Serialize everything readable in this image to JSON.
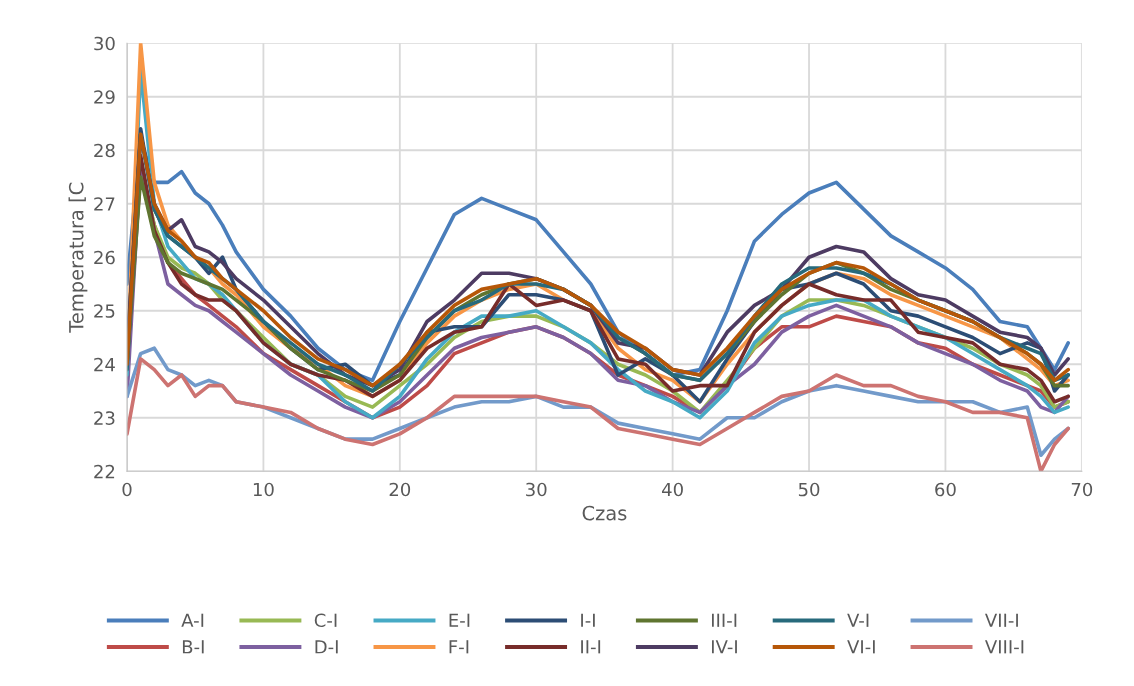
{
  "chart_data": {
    "type": "line",
    "xlabel": "Czas",
    "ylabel": "Temperatura [C",
    "xlim": [
      0,
      70
    ],
    "xticks": [
      0,
      10,
      20,
      30,
      40,
      50,
      60,
      70
    ],
    "ylim": [
      22,
      30
    ],
    "yticks": [
      22,
      23,
      24,
      25,
      26,
      27,
      28,
      29,
      30
    ],
    "grid": true,
    "legend": "bottom",
    "marker": "none",
    "line_style": "solid",
    "x": [
      0,
      1,
      2,
      3,
      4,
      5,
      6,
      7,
      8,
      10,
      12,
      14,
      16,
      18,
      20,
      22,
      24,
      26,
      28,
      30,
      32,
      34,
      36,
      38,
      40,
      42,
      44,
      46,
      48,
      50,
      52,
      54,
      56,
      58,
      60,
      62,
      64,
      66,
      67,
      68,
      69
    ],
    "series": [
      {
        "name": "A-I",
        "color": "#4a7ebb",
        "values": [
          25.5,
          28.2,
          27.4,
          27.4,
          27.6,
          27.2,
          27.0,
          26.6,
          26.1,
          25.4,
          24.9,
          24.3,
          23.9,
          23.7,
          24.8,
          25.8,
          26.8,
          27.1,
          26.9,
          26.7,
          26.1,
          25.5,
          24.6,
          24.2,
          23.8,
          23.9,
          25.0,
          26.3,
          26.8,
          27.2,
          27.4,
          26.9,
          26.4,
          26.1,
          25.8,
          25.4,
          24.8,
          24.7,
          24.3,
          23.9,
          24.4
        ]
      },
      {
        "name": "B-I",
        "color": "#be4b48",
        "values": [
          24.0,
          27.6,
          26.6,
          25.9,
          25.6,
          25.3,
          25.1,
          24.9,
          24.7,
          24.2,
          23.9,
          23.6,
          23.3,
          23.0,
          23.2,
          23.6,
          24.2,
          24.4,
          24.6,
          24.7,
          24.5,
          24.2,
          23.8,
          23.6,
          23.4,
          23.1,
          23.6,
          24.3,
          24.7,
          24.7,
          24.9,
          24.8,
          24.7,
          24.4,
          24.3,
          24.0,
          23.8,
          23.6,
          23.5,
          23.2,
          23.3
        ]
      },
      {
        "name": "C-I",
        "color": "#98b954",
        "values": [
          24.0,
          27.7,
          26.6,
          26.0,
          25.8,
          25.7,
          25.5,
          25.2,
          25.0,
          24.5,
          24.0,
          23.8,
          23.4,
          23.2,
          23.6,
          24.0,
          24.5,
          24.8,
          24.9,
          24.9,
          24.7,
          24.4,
          24.0,
          23.8,
          23.5,
          23.1,
          23.7,
          24.3,
          24.9,
          25.2,
          25.2,
          25.1,
          24.9,
          24.7,
          24.5,
          24.3,
          24.0,
          23.8,
          23.6,
          23.2,
          23.3
        ]
      },
      {
        "name": "D-I",
        "color": "#7d60a0",
        "values": [
          23.4,
          27.8,
          26.5,
          25.5,
          25.3,
          25.1,
          25.0,
          24.8,
          24.6,
          24.2,
          23.8,
          23.5,
          23.2,
          23.0,
          23.3,
          23.8,
          24.3,
          24.5,
          24.6,
          24.7,
          24.5,
          24.2,
          23.7,
          23.6,
          23.3,
          23.1,
          23.6,
          24.0,
          24.6,
          24.9,
          25.1,
          24.9,
          24.7,
          24.4,
          24.2,
          24.0,
          23.7,
          23.5,
          23.2,
          23.1,
          23.4
        ]
      },
      {
        "name": "E-I",
        "color": "#46aac5",
        "values": [
          23.8,
          29.5,
          27.0,
          26.2,
          25.9,
          25.6,
          25.5,
          25.3,
          25.0,
          24.4,
          24.0,
          23.8,
          23.3,
          23.0,
          23.4,
          24.1,
          24.6,
          24.9,
          24.9,
          25.0,
          24.7,
          24.4,
          23.9,
          23.5,
          23.3,
          23.0,
          23.5,
          24.4,
          24.9,
          25.1,
          25.2,
          25.2,
          24.9,
          24.7,
          24.5,
          24.2,
          23.9,
          23.6,
          23.4,
          23.1,
          23.2
        ]
      },
      {
        "name": "F-I",
        "color": "#f79646",
        "values": [
          24.0,
          30.0,
          27.4,
          26.6,
          26.3,
          26.0,
          25.8,
          25.5,
          25.3,
          24.7,
          24.3,
          24.0,
          23.6,
          23.4,
          23.7,
          24.4,
          24.9,
          25.2,
          25.4,
          25.5,
          25.2,
          25.0,
          24.3,
          23.9,
          23.7,
          23.3,
          24.0,
          24.6,
          25.1,
          25.5,
          25.7,
          25.6,
          25.3,
          25.1,
          24.9,
          24.7,
          24.5,
          24.1,
          23.9,
          23.6,
          23.7
        ]
      },
      {
        "name": "I-I",
        "color": "#2c4d75",
        "values": [
          24.2,
          28.4,
          26.9,
          26.4,
          26.2,
          26.0,
          25.7,
          26.0,
          25.4,
          24.8,
          24.3,
          23.9,
          24.0,
          23.6,
          23.8,
          24.6,
          24.7,
          24.7,
          25.3,
          25.3,
          25.2,
          25.0,
          23.8,
          24.1,
          23.8,
          23.3,
          24.1,
          24.8,
          25.4,
          25.5,
          25.7,
          25.5,
          25.0,
          24.9,
          24.7,
          24.5,
          24.2,
          24.4,
          24.3,
          23.5,
          23.8
        ]
      },
      {
        "name": "II-I",
        "color": "#772c2a",
        "values": [
          24.0,
          27.9,
          26.5,
          25.9,
          25.5,
          25.3,
          25.2,
          25.2,
          25.0,
          24.4,
          24.0,
          23.8,
          23.7,
          23.4,
          23.7,
          24.3,
          24.6,
          24.7,
          25.5,
          25.1,
          25.2,
          25.0,
          24.1,
          24.0,
          23.5,
          23.6,
          23.6,
          24.6,
          25.1,
          25.5,
          25.3,
          25.2,
          25.2,
          24.6,
          24.5,
          24.4,
          24.0,
          23.9,
          23.7,
          23.3,
          23.4
        ]
      },
      {
        "name": "III-I",
        "color": "#5f7530",
        "values": [
          24.0,
          27.5,
          26.4,
          25.9,
          25.7,
          25.6,
          25.5,
          25.4,
          25.2,
          24.8,
          24.3,
          23.9,
          23.7,
          23.5,
          23.8,
          24.5,
          25.0,
          25.3,
          25.5,
          25.6,
          25.4,
          25.1,
          24.5,
          24.2,
          23.8,
          23.7,
          24.2,
          24.8,
          25.3,
          25.7,
          25.9,
          25.7,
          25.4,
          25.2,
          25.0,
          24.8,
          24.5,
          24.2,
          24.0,
          23.6,
          23.6
        ]
      },
      {
        "name": "IV-I",
        "color": "#4d3b62",
        "values": [
          24.2,
          28.3,
          27.0,
          26.5,
          26.7,
          26.2,
          26.1,
          25.9,
          25.6,
          25.2,
          24.7,
          24.2,
          23.8,
          23.6,
          23.9,
          24.8,
          25.2,
          25.7,
          25.7,
          25.6,
          25.4,
          25.1,
          24.4,
          24.3,
          23.9,
          23.8,
          24.6,
          25.1,
          25.4,
          26.0,
          26.2,
          26.1,
          25.6,
          25.3,
          25.2,
          24.9,
          24.6,
          24.5,
          24.3,
          23.8,
          24.1
        ]
      },
      {
        "name": "V-I",
        "color": "#276a7c",
        "values": [
          23.9,
          28.3,
          26.9,
          26.4,
          26.2,
          26.0,
          25.8,
          25.6,
          25.4,
          24.8,
          24.4,
          24.0,
          23.8,
          23.5,
          24.0,
          24.5,
          25.0,
          25.2,
          25.5,
          25.5,
          25.4,
          25.1,
          24.5,
          24.2,
          23.8,
          23.7,
          24.2,
          24.9,
          25.5,
          25.8,
          25.8,
          25.7,
          25.5,
          25.2,
          25.0,
          24.8,
          24.5,
          24.3,
          24.2,
          23.7,
          23.8
        ]
      },
      {
        "name": "VI-I",
        "color": "#b65708",
        "values": [
          24.0,
          28.3,
          27.0,
          26.5,
          26.3,
          26.0,
          25.9,
          25.6,
          25.4,
          25.0,
          24.5,
          24.1,
          23.9,
          23.6,
          24.0,
          24.6,
          25.1,
          25.4,
          25.5,
          25.6,
          25.4,
          25.1,
          24.6,
          24.3,
          23.9,
          23.8,
          24.3,
          24.9,
          25.4,
          25.7,
          25.9,
          25.8,
          25.5,
          25.2,
          25.0,
          24.8,
          24.5,
          24.2,
          24.0,
          23.7,
          23.9
        ]
      },
      {
        "name": "VII-I",
        "color": "#729aca",
        "values": [
          23.4,
          24.2,
          24.3,
          23.9,
          23.8,
          23.6,
          23.7,
          23.6,
          23.3,
          23.2,
          23.0,
          22.8,
          22.6,
          22.6,
          22.8,
          23.0,
          23.2,
          23.3,
          23.3,
          23.4,
          23.2,
          23.2,
          22.9,
          22.8,
          22.7,
          22.6,
          23.0,
          23.0,
          23.3,
          23.5,
          23.6,
          23.5,
          23.4,
          23.3,
          23.3,
          23.3,
          23.1,
          23.2,
          22.3,
          22.6,
          22.8
        ]
      },
      {
        "name": "VIII-I",
        "color": "#cd7371",
        "values": [
          22.7,
          24.1,
          23.9,
          23.6,
          23.8,
          23.4,
          23.6,
          23.6,
          23.3,
          23.2,
          23.1,
          22.8,
          22.6,
          22.5,
          22.7,
          23.0,
          23.4,
          23.4,
          23.4,
          23.4,
          23.3,
          23.2,
          22.8,
          22.7,
          22.6,
          22.5,
          22.8,
          23.1,
          23.4,
          23.5,
          23.8,
          23.6,
          23.6,
          23.4,
          23.3,
          23.1,
          23.1,
          23.0,
          22.0,
          22.5,
          22.8
        ]
      }
    ]
  }
}
